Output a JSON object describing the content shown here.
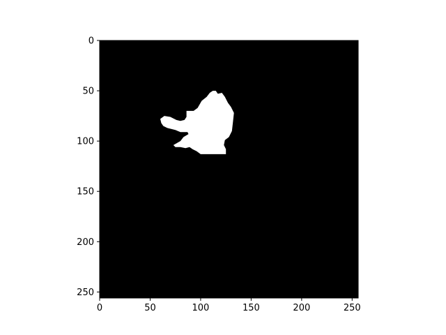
{
  "chart_data": {
    "type": "heatmap",
    "colormap": "gray",
    "background_color": "#000000",
    "mask_color": "#ffffff",
    "image_size": [
      256,
      256
    ],
    "xlim": [
      0,
      256
    ],
    "ylim": [
      256,
      0
    ],
    "x_ticks": [
      0,
      50,
      100,
      150,
      200,
      250
    ],
    "y_ticks": [
      0,
      50,
      100,
      150,
      200,
      250
    ],
    "x_tick_labels": [
      "0",
      "50",
      "100",
      "150",
      "200",
      "250"
    ],
    "y_tick_labels": [
      "0",
      "50",
      "100",
      "150",
      "200",
      "250"
    ],
    "mask_region_outline": [
      [
        112,
        50
      ],
      [
        115,
        50
      ],
      [
        117,
        53
      ],
      [
        121,
        52
      ],
      [
        124,
        56
      ],
      [
        127,
        62
      ],
      [
        130,
        66
      ],
      [
        133,
        72
      ],
      [
        132,
        81
      ],
      [
        131,
        90
      ],
      [
        128,
        96
      ],
      [
        124,
        99
      ],
      [
        123,
        104
      ],
      [
        125,
        108
      ],
      [
        125,
        113
      ],
      [
        100,
        113
      ],
      [
        96,
        110
      ],
      [
        92,
        108
      ],
      [
        89,
        106
      ],
      [
        85,
        107
      ],
      [
        80,
        106
      ],
      [
        75,
        106
      ],
      [
        73,
        104
      ],
      [
        80,
        100
      ],
      [
        83,
        96
      ],
      [
        88,
        93
      ],
      [
        87,
        91
      ],
      [
        80,
        91
      ],
      [
        75,
        89
      ],
      [
        67,
        87
      ],
      [
        63,
        85
      ],
      [
        61,
        82
      ],
      [
        60,
        78
      ],
      [
        64,
        75
      ],
      [
        70,
        76
      ],
      [
        76,
        79
      ],
      [
        80,
        80
      ],
      [
        84,
        79
      ],
      [
        86,
        76
      ],
      [
        86,
        70
      ],
      [
        93,
        70
      ],
      [
        97,
        67
      ],
      [
        101,
        60
      ],
      [
        106,
        56
      ],
      [
        109,
        52
      ]
    ]
  }
}
